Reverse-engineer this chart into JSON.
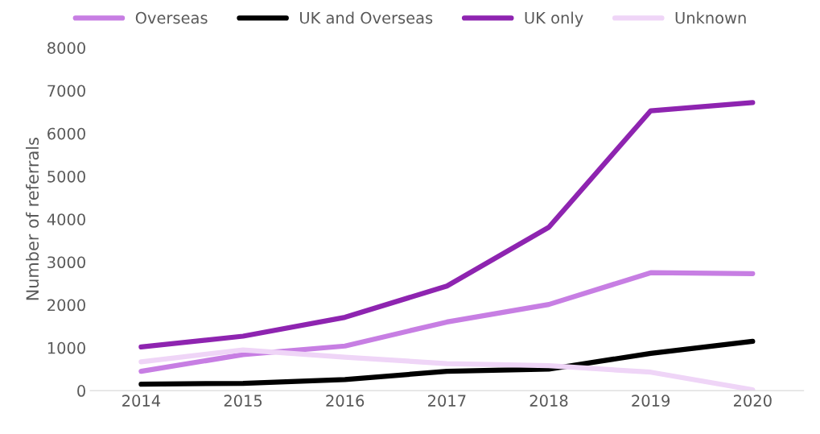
{
  "chart_data": {
    "type": "line",
    "ylabel": "Number of referrals",
    "categories": [
      "2014",
      "2015",
      "2016",
      "2017",
      "2018",
      "2019",
      "2020"
    ],
    "series": [
      {
        "name": "Overseas",
        "color": "#c77ee3",
        "values": [
          450,
          840,
          1040,
          1600,
          2010,
          2750,
          2730
        ]
      },
      {
        "name": "UK and Overseas",
        "color": "#000000",
        "values": [
          150,
          170,
          260,
          450,
          500,
          870,
          1150
        ]
      },
      {
        "name": "UK only",
        "color": "#8e24b0",
        "values": [
          1020,
          1270,
          1710,
          2440,
          3810,
          6530,
          6720
        ]
      },
      {
        "name": "Unknown",
        "color": "#efd5f7",
        "values": [
          670,
          950,
          780,
          630,
          580,
          430,
          20
        ]
      }
    ],
    "ylim": [
      0,
      8000
    ],
    "yticks": [
      0,
      1000,
      2000,
      3000,
      4000,
      5000,
      6000,
      7000,
      8000
    ],
    "grid": false,
    "legend": "top",
    "marker": "none",
    "line_style": "solid"
  }
}
